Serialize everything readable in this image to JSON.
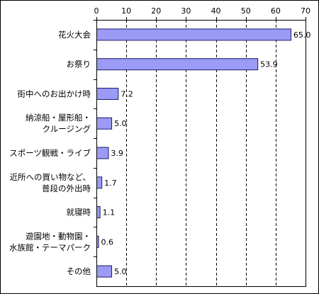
{
  "chart_data": {
    "type": "bar",
    "orientation": "horizontal",
    "xlim": [
      0,
      70
    ],
    "xticks": [
      0,
      10,
      20,
      30,
      40,
      50,
      60,
      70
    ],
    "grid": "vertical dashed",
    "value_labels": "right of bar",
    "categories": [
      [
        "花火大会"
      ],
      [
        "お祭り"
      ],
      [
        "街中へのお出かけ時"
      ],
      [
        "納涼船・屋形船・",
        "クルージング"
      ],
      [
        "スポーツ観戦・ライブ"
      ],
      [
        "近所への買い物など、",
        "普段の外出時"
      ],
      [
        "就寝時"
      ],
      [
        "遊園地・動物園・",
        "水族館・テーマパーク"
      ],
      [
        "その他"
      ]
    ],
    "values": [
      65.0,
      53.9,
      7.2,
      5.0,
      3.9,
      1.7,
      1.1,
      0.6,
      5.0
    ],
    "value_text": [
      "65.0",
      "53.9",
      "7.2",
      "5.0",
      "3.9",
      "1.7",
      "1.1",
      "0.6",
      "5.0"
    ],
    "colors": {
      "bar_fill": "#9b9bf5",
      "bar_stroke": "#1a1a6b",
      "grid": "#000000",
      "frame": "#000000",
      "background": "#ffffff"
    }
  }
}
